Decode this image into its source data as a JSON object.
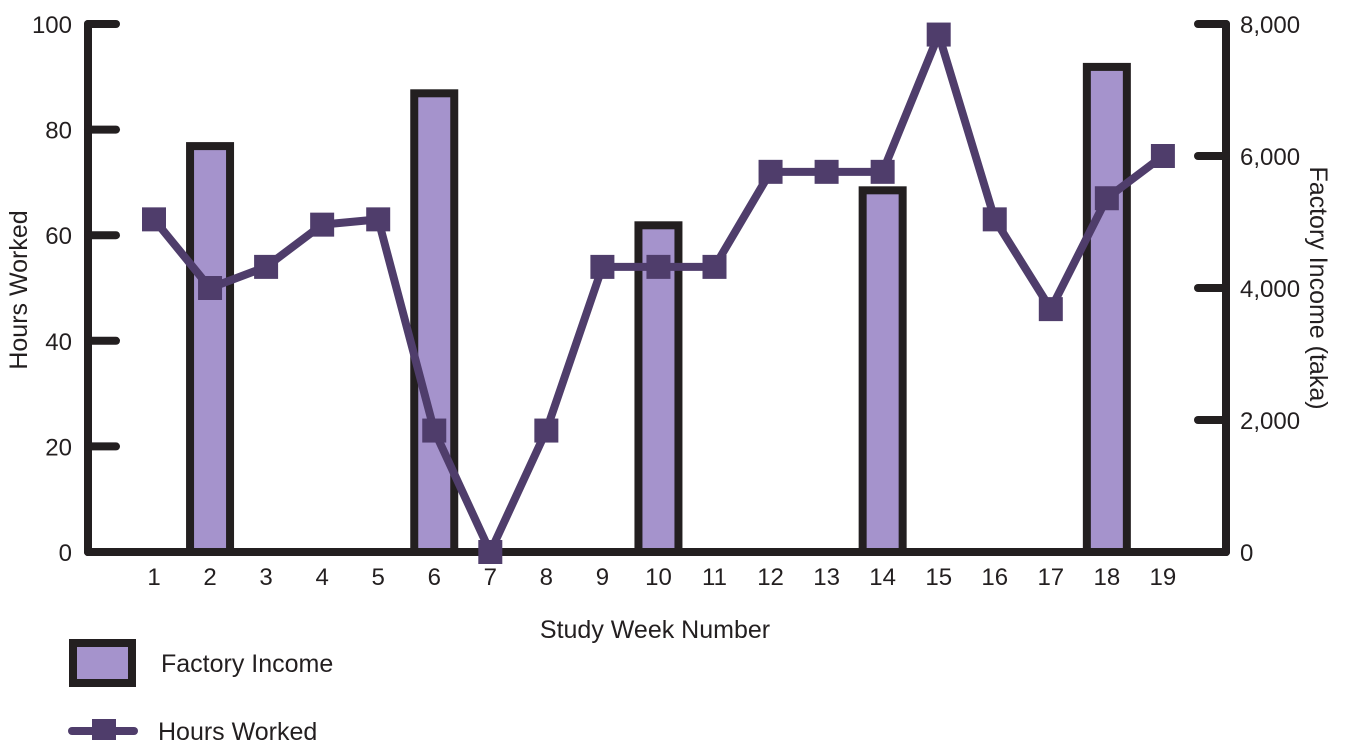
{
  "chart_data": {
    "type": "bar+line",
    "x": [
      "1",
      "2",
      "3",
      "4",
      "5",
      "6",
      "7",
      "8",
      "9",
      "10",
      "11",
      "12",
      "13",
      "14",
      "15",
      "16",
      "17",
      "18",
      "19"
    ],
    "xlabel": "Study Week Number",
    "ylabel_left": "Hours Worked",
    "ylabel_right": "Factory Income (taka)",
    "ylim_left": [
      0,
      100
    ],
    "ylim_right": [
      0,
      8000
    ],
    "yticks_left": [
      "0",
      "20",
      "40",
      "60",
      "80",
      "100"
    ],
    "yticks_right": [
      "0",
      "2,000",
      "4,000",
      "6,000",
      "8,000"
    ],
    "series": [
      {
        "name": "Factory Income",
        "type": "bar",
        "axis": "right",
        "values": [
          null,
          6150,
          null,
          null,
          null,
          6950,
          null,
          null,
          null,
          4950,
          null,
          null,
          null,
          5480,
          null,
          null,
          null,
          7350,
          null
        ]
      },
      {
        "name": "Hours Worked",
        "type": "line",
        "axis": "left",
        "values": [
          63,
          50,
          54,
          62,
          63,
          23,
          0,
          23,
          54,
          54,
          54,
          72,
          72,
          72,
          98,
          63,
          46,
          67,
          75
        ]
      }
    ],
    "legend": {
      "position": "bottom-left"
    },
    "colors": {
      "bar_fill": "#a593cc",
      "bar_outline": "#231f20",
      "line": "#4f3d6b",
      "axis": "#231f20"
    }
  }
}
